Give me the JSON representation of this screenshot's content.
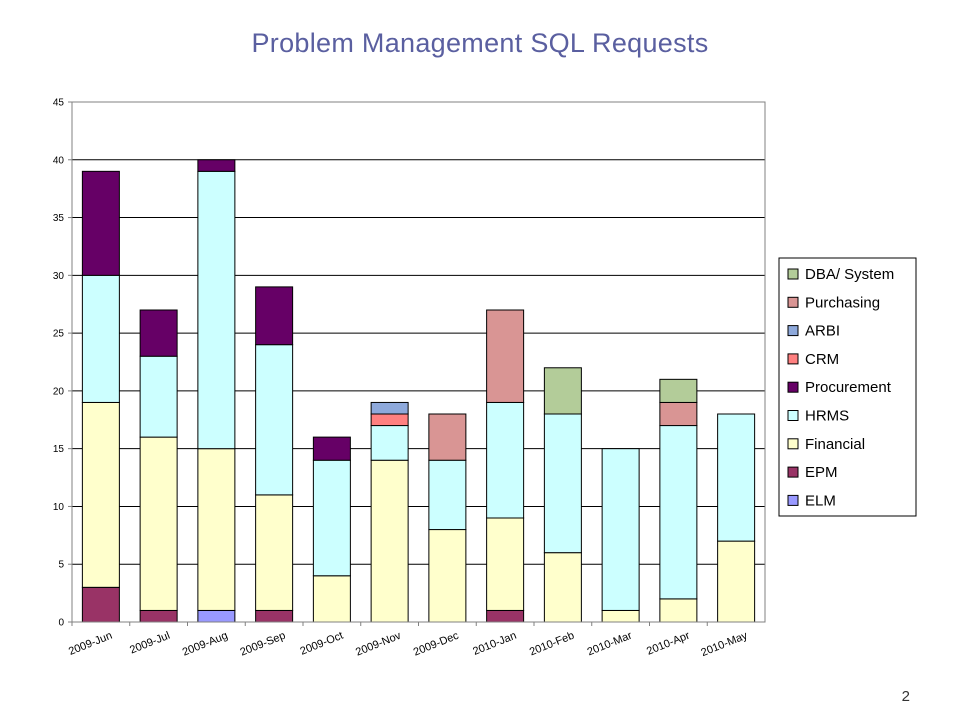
{
  "page": {
    "number": "2"
  },
  "chart_data": {
    "type": "bar",
    "stacked": true,
    "title": "Problem Management SQL Requests",
    "xlabel": "",
    "ylabel": "",
    "ylim": [
      0,
      45
    ],
    "yticks": [
      0,
      5,
      10,
      15,
      20,
      25,
      30,
      35,
      40,
      45
    ],
    "grid": true,
    "legend_position": "right",
    "categories": [
      "2009-Jun",
      "2009-Jul",
      "2009-Aug",
      "2009-Sep",
      "2009-Oct",
      "2009-Nov",
      "2009-Dec",
      "2010-Jan",
      "2010-Feb",
      "2010-Mar",
      "2010-Apr",
      "2010-May"
    ],
    "series": [
      {
        "name": "ELM",
        "color": "#9999ff",
        "values": [
          0,
          0,
          1,
          0,
          0,
          0,
          0,
          0,
          0,
          0,
          0,
          0
        ]
      },
      {
        "name": "EPM",
        "color": "#993366",
        "values": [
          3,
          1,
          0,
          1,
          0,
          0,
          0,
          1,
          0,
          0,
          0,
          0
        ]
      },
      {
        "name": "Financial",
        "color": "#ffffcc",
        "values": [
          16,
          15,
          14,
          10,
          4,
          14,
          8,
          8,
          6,
          1,
          2,
          7
        ]
      },
      {
        "name": "HRMS",
        "color": "#ccffff",
        "values": [
          11,
          7,
          24,
          13,
          10,
          3,
          6,
          10,
          12,
          14,
          15,
          11
        ]
      },
      {
        "name": "Procurement",
        "color": "#660066",
        "values": [
          9,
          4,
          1,
          5,
          2,
          0,
          0,
          0,
          0,
          0,
          0,
          0
        ]
      },
      {
        "name": "CRM",
        "color": "#ff8080",
        "values": [
          0,
          0,
          0,
          0,
          0,
          1,
          0,
          0,
          0,
          0,
          0,
          0
        ]
      },
      {
        "name": "ARBI",
        "color": "#8ea9db",
        "values": [
          0,
          0,
          0,
          0,
          0,
          1,
          0,
          0,
          0,
          0,
          0,
          0
        ]
      },
      {
        "name": "Purchasing",
        "color": "#d99594",
        "values": [
          0,
          0,
          0,
          0,
          0,
          0,
          4,
          8,
          0,
          0,
          2,
          0
        ]
      },
      {
        "name": "DBA/ System",
        "color": "#b3cc99",
        "values": [
          0,
          0,
          0,
          0,
          0,
          0,
          0,
          0,
          4,
          0,
          2,
          0
        ]
      }
    ],
    "legend_order": [
      "DBA/ System",
      "Purchasing",
      "ARBI",
      "CRM",
      "Procurement",
      "HRMS",
      "Financial",
      "EPM",
      "ELM"
    ]
  }
}
